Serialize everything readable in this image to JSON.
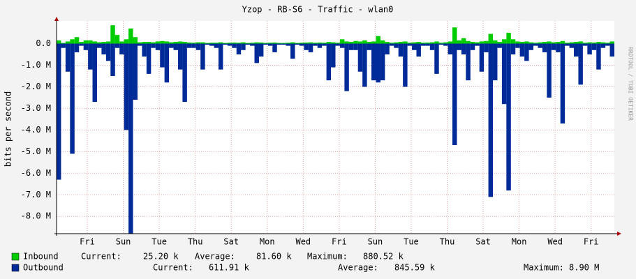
{
  "chart_data": {
    "type": "area",
    "title": "Yzop - RB-S6 - Traffic - wlan0",
    "y_label": "bits per second",
    "watermark": "RRDTOOL / TOBI OETIKER",
    "grid": true,
    "xlim": [
      0,
      744
    ],
    "ylim": [
      -8800000,
      1050000
    ],
    "xticks": [
      {
        "value": 41,
        "label": "Fri"
      },
      {
        "value": 89,
        "label": "Sun"
      },
      {
        "value": 137,
        "label": "Tue"
      },
      {
        "value": 185,
        "label": "Thu"
      },
      {
        "value": 233,
        "label": "Sat"
      },
      {
        "value": 281,
        "label": "Mon"
      },
      {
        "value": 329,
        "label": "Wed"
      },
      {
        "value": 377,
        "label": "Fri"
      },
      {
        "value": 425,
        "label": "Sun"
      },
      {
        "value": 473,
        "label": "Tue"
      },
      {
        "value": 521,
        "label": "Thu"
      },
      {
        "value": 569,
        "label": "Sat"
      },
      {
        "value": 617,
        "label": "Mon"
      },
      {
        "value": 665,
        "label": "Wed"
      },
      {
        "value": 713,
        "label": "Fri"
      }
    ],
    "yticks": [
      {
        "value": 0,
        "label": "0.0"
      },
      {
        "value": -1000000,
        "label": "-1.0 M"
      },
      {
        "value": -2000000,
        "label": "-2.0 M"
      },
      {
        "value": -3000000,
        "label": "-3.0 M"
      },
      {
        "value": -4000000,
        "label": "-4.0 M"
      },
      {
        "value": -5000000,
        "label": "-5.0 M"
      },
      {
        "value": -6000000,
        "label": "-6.0 M"
      },
      {
        "value": -7000000,
        "label": "-7.0 M"
      },
      {
        "value": -8000000,
        "label": "-8.0 M"
      }
    ],
    "x": [
      0,
      6,
      12,
      18,
      24,
      30,
      36,
      42,
      48,
      54,
      60,
      66,
      72,
      78,
      84,
      90,
      96,
      102,
      108,
      114,
      120,
      126,
      132,
      138,
      144,
      150,
      156,
      162,
      168,
      174,
      180,
      186,
      192,
      198,
      204,
      210,
      216,
      222,
      228,
      234,
      240,
      246,
      252,
      258,
      264,
      270,
      276,
      282,
      288,
      294,
      300,
      306,
      312,
      318,
      324,
      330,
      336,
      342,
      348,
      354,
      360,
      366,
      372,
      378,
      384,
      390,
      396,
      402,
      408,
      414,
      420,
      426,
      432,
      438,
      444,
      450,
      456,
      462,
      468,
      474,
      480,
      486,
      492,
      498,
      504,
      510,
      516,
      522,
      528,
      534,
      540,
      546,
      552,
      558,
      564,
      570,
      576,
      582,
      588,
      594,
      600,
      606,
      612,
      618,
      624,
      630,
      636,
      642,
      648,
      654,
      660,
      666,
      672,
      678,
      684,
      690,
      696,
      702,
      708,
      714,
      720,
      726,
      732,
      738
    ],
    "bar_width": 6,
    "series": [
      {
        "name": "Inbound",
        "color": "#00cc00",
        "values": [
          150000,
          30000,
          100000,
          200000,
          300000,
          80000,
          150000,
          150000,
          100000,
          60000,
          80000,
          100000,
          850000,
          400000,
          100000,
          200000,
          700000,
          300000,
          60000,
          80000,
          80000,
          60000,
          100000,
          120000,
          100000,
          60000,
          80000,
          100000,
          80000,
          50000,
          40000,
          60000,
          60000,
          30000,
          40000,
          40000,
          60000,
          30000,
          40000,
          50000,
          40000,
          60000,
          30000,
          40000,
          60000,
          50000,
          30000,
          40000,
          50000,
          30000,
          30000,
          40000,
          60000,
          30000,
          40000,
          50000,
          60000,
          40000,
          50000,
          40000,
          80000,
          60000,
          40000,
          200000,
          100000,
          80000,
          120000,
          100000,
          150000,
          80000,
          100000,
          350000,
          150000,
          80000,
          40000,
          60000,
          80000,
          100000,
          40000,
          60000,
          80000,
          40000,
          50000,
          60000,
          100000,
          40000,
          60000,
          100000,
          750000,
          150000,
          250000,
          120000,
          80000,
          60000,
          100000,
          120000,
          450000,
          150000,
          80000,
          200000,
          500000,
          200000,
          100000,
          80000,
          100000,
          60000,
          40000,
          60000,
          80000,
          100000,
          60000,
          80000,
          120000,
          40000,
          60000,
          80000,
          100000,
          40000,
          60000,
          50000,
          80000,
          60000,
          40000,
          100000
        ],
        "stats": [
          {
            "name": "Current:",
            "value": 25200,
            "label": "25.20 k"
          },
          {
            "name": "Average:",
            "value": 81600,
            "label": "81.60 k"
          },
          {
            "name": "Maximum:",
            "value": 880520,
            "label": "880.52 k"
          }
        ]
      },
      {
        "name": "Outbound",
        "color": "#002a97",
        "values": [
          -6300000,
          -200000,
          -1300000,
          -5100000,
          -400000,
          -100000,
          -300000,
          -1200000,
          -2700000,
          -200000,
          -500000,
          -800000,
          -1500000,
          -200000,
          -500000,
          -4000000,
          -8800000,
          -2600000,
          -100000,
          -600000,
          -1400000,
          -200000,
          -300000,
          -1100000,
          -1800000,
          -200000,
          -300000,
          -1200000,
          -2700000,
          -200000,
          -200000,
          -300000,
          -1200000,
          -50000,
          -100000,
          -200000,
          -1200000,
          -50000,
          -100000,
          -200000,
          -500000,
          -300000,
          -50000,
          -100000,
          -900000,
          -600000,
          -50000,
          -100000,
          -400000,
          -50000,
          -50000,
          -100000,
          -700000,
          -50000,
          -100000,
          -300000,
          -400000,
          -100000,
          -200000,
          -100000,
          -1700000,
          -1100000,
          -100000,
          -200000,
          -2200000,
          -300000,
          -300000,
          -1300000,
          -2000000,
          -300000,
          -1700000,
          -1800000,
          -1700000,
          -500000,
          -100000,
          -200000,
          -600000,
          -2000000,
          -100000,
          -300000,
          -600000,
          -100000,
          -100000,
          -300000,
          -1400000,
          -50000,
          -100000,
          -500000,
          -4700000,
          -300000,
          -500000,
          -1700000,
          -300000,
          -100000,
          -1300000,
          -400000,
          -7100000,
          -1700000,
          -200000,
          -2800000,
          -6800000,
          -500000,
          -200000,
          -600000,
          -800000,
          -300000,
          -100000,
          -200000,
          -400000,
          -2500000,
          -300000,
          -400000,
          -3700000,
          -100000,
          -200000,
          -600000,
          -1900000,
          -100000,
          -500000,
          -300000,
          -1200000,
          -200000,
          -100000,
          -600000
        ],
        "stats": [
          {
            "name": "Current:",
            "value": 611910,
            "label": "611.91 k"
          },
          {
            "name": "Average:",
            "value": 845590,
            "label": "845.59 k"
          },
          {
            "name": "Maximum:",
            "value": 8900000,
            "label": "8.90 M"
          }
        ]
      }
    ]
  }
}
